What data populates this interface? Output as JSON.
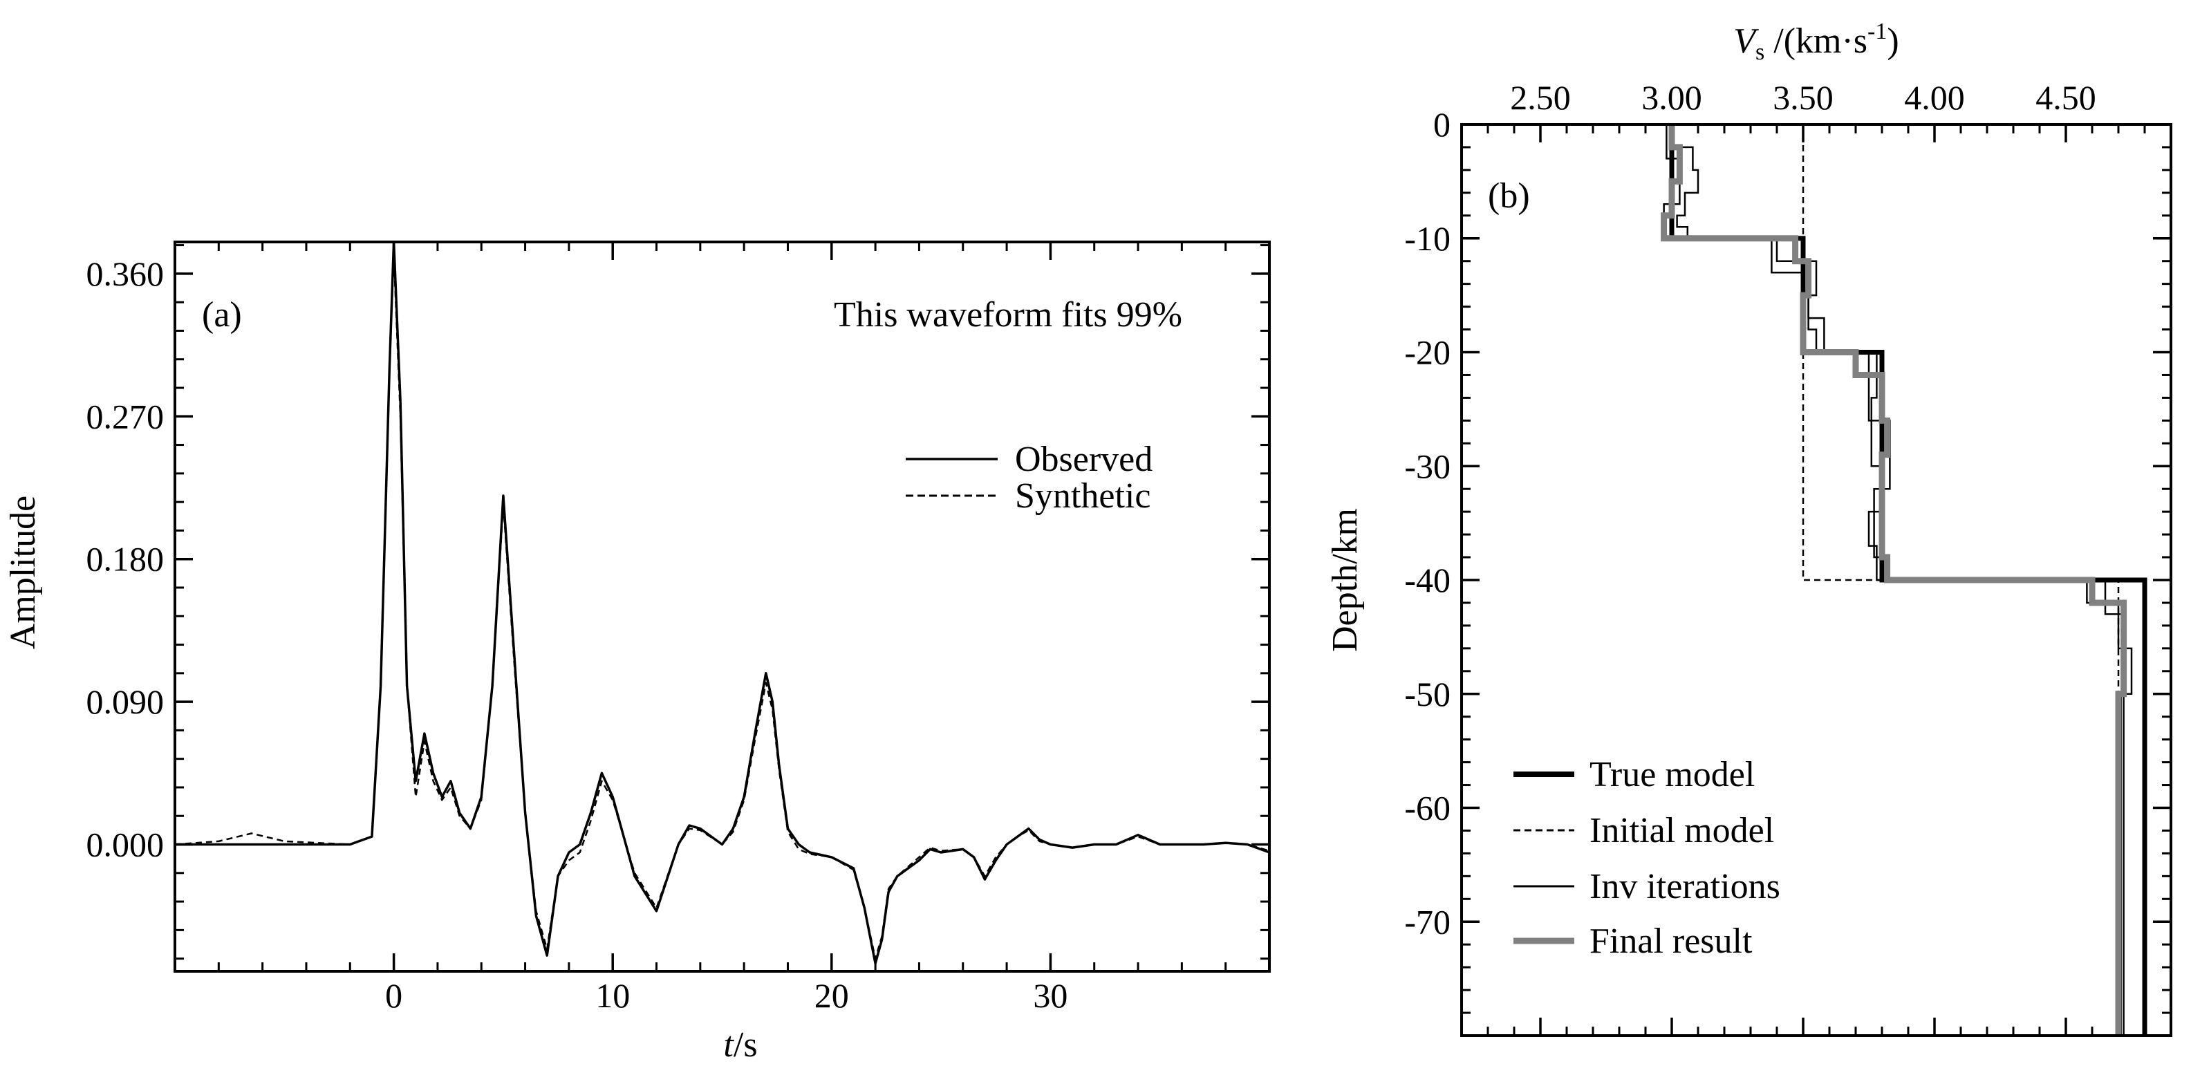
{
  "chart_data": [
    {
      "panel": "a",
      "type": "line",
      "panel_label": "(a)",
      "annotation": "This waveform fits 99%",
      "xlabel_italic": "t",
      "xlabel_rest": "/s",
      "ylabel": "Amplitude",
      "xlim": [
        -10,
        40
      ],
      "ylim": [
        -0.08,
        0.38
      ],
      "x_ticks": [
        0,
        10,
        20,
        30
      ],
      "x_tick_labels": [
        "0",
        "10",
        "20",
        "30"
      ],
      "y_ticks": [
        0.0,
        0.09,
        0.18,
        0.27,
        0.36
      ],
      "y_tick_labels": [
        "0.000",
        "0.090",
        "0.180",
        "0.270",
        "0.360"
      ],
      "legend": [
        "Observed",
        "Synthetic"
      ],
      "series": [
        {
          "name": "Observed",
          "style": "solid",
          "x": [
            -10,
            -2,
            -1,
            -0.6,
            -0.2,
            0,
            0.3,
            0.6,
            1.0,
            1.4,
            1.8,
            2.2,
            2.6,
            3.0,
            3.5,
            4.0,
            4.5,
            5.0,
            5.5,
            6.0,
            6.5,
            7.0,
            7.5,
            8.0,
            8.5,
            9.0,
            9.5,
            10.0,
            11.0,
            12.0,
            13.0,
            13.5,
            14.0,
            15.0,
            15.5,
            16.0,
            16.5,
            17.0,
            17.3,
            17.6,
            18.0,
            18.5,
            19.0,
            20.0,
            21.0,
            21.5,
            22.0,
            22.3,
            22.6,
            23.0,
            23.5,
            24.0,
            24.5,
            25.0,
            26.0,
            26.5,
            27.0,
            27.5,
            28.0,
            28.5,
            29.0,
            29.5,
            30.0,
            31.0,
            32.0,
            33.0,
            34.0,
            35.0,
            36.0,
            37.0,
            38.0,
            39.0,
            40.0
          ],
          "y": [
            0.0,
            0.0,
            0.005,
            0.1,
            0.3,
            0.38,
            0.28,
            0.1,
            0.04,
            0.07,
            0.045,
            0.03,
            0.04,
            0.02,
            0.01,
            0.03,
            0.1,
            0.22,
            0.12,
            0.02,
            -0.045,
            -0.07,
            -0.02,
            -0.005,
            0.0,
            0.02,
            0.045,
            0.03,
            -0.02,
            -0.042,
            0.0,
            0.012,
            0.01,
            0.0,
            0.01,
            0.03,
            0.07,
            0.108,
            0.09,
            0.05,
            0.01,
            0.0,
            -0.005,
            -0.008,
            -0.015,
            -0.04,
            -0.075,
            -0.06,
            -0.03,
            -0.02,
            -0.015,
            -0.01,
            -0.003,
            -0.005,
            -0.003,
            -0.008,
            -0.022,
            -0.01,
            0.0,
            0.005,
            0.01,
            0.003,
            0.0,
            -0.002,
            0.0,
            0.0,
            0.006,
            0.0,
            0.0,
            0.0,
            0.001,
            0.0,
            -0.005
          ]
        },
        {
          "name": "Synthetic",
          "style": "dashed",
          "x": [
            -10,
            -8,
            -6.5,
            -5,
            -2,
            -1,
            -0.6,
            -0.2,
            0,
            0.3,
            0.6,
            1.0,
            1.4,
            1.8,
            2.2,
            2.6,
            3.0,
            3.5,
            4.0,
            4.5,
            5.0,
            5.5,
            6.0,
            6.5,
            7.0,
            7.5,
            8.0,
            8.5,
            9.0,
            9.5,
            10.0,
            11.0,
            12.0,
            13.0,
            13.5,
            14.0,
            15.0,
            15.5,
            16.0,
            16.5,
            17.0,
            17.3,
            17.6,
            18.0,
            18.5,
            19.0,
            20.0,
            21.0,
            21.5,
            22.0,
            22.3,
            22.6,
            23.0,
            23.5,
            24.0,
            24.5,
            25.0,
            26.0,
            26.5,
            27.0,
            27.5,
            28.0,
            28.5,
            29.0,
            29.5,
            30.0,
            31.0,
            32.0,
            33.0,
            34.0,
            35.0,
            36.0,
            37.0,
            38.0,
            39.0,
            40.0
          ],
          "y": [
            0.0,
            0.002,
            0.007,
            0.002,
            0.0,
            0.005,
            0.1,
            0.3,
            0.372,
            0.27,
            0.1,
            0.03,
            0.065,
            0.04,
            0.028,
            0.036,
            0.018,
            0.01,
            0.028,
            0.1,
            0.215,
            0.115,
            0.02,
            -0.042,
            -0.066,
            -0.02,
            -0.01,
            -0.005,
            0.015,
            0.04,
            0.028,
            -0.018,
            -0.04,
            0.0,
            0.01,
            0.009,
            0.0,
            0.008,
            0.028,
            0.066,
            0.102,
            0.085,
            0.047,
            0.008,
            -0.003,
            -0.006,
            -0.008,
            -0.016,
            -0.04,
            -0.072,
            -0.058,
            -0.028,
            -0.02,
            -0.014,
            -0.008,
            -0.002,
            -0.004,
            -0.003,
            -0.008,
            -0.02,
            -0.008,
            0.0,
            0.005,
            0.009,
            0.002,
            0.0,
            -0.002,
            0.0,
            0.0,
            0.005,
            0.0,
            0.0,
            0.0,
            0.001,
            0.0,
            -0.004
          ]
        }
      ]
    },
    {
      "panel": "b",
      "type": "line",
      "panel_label": "(b)",
      "xlabel_italic": "V",
      "xlabel_sub": "s",
      "xlabel_rest": " /(km·s",
      "xlabel_sup": "-1",
      "xlabel_close": ")",
      "ylabel": "Depth/km",
      "xlim": [
        2.2,
        4.9
      ],
      "ylim": [
        -80,
        0
      ],
      "x_ticks": [
        2.5,
        3.0,
        3.5,
        4.0,
        4.5
      ],
      "x_tick_labels": [
        "2.50",
        "3.00",
        "3.50",
        "4.00",
        "4.50"
      ],
      "y_ticks": [
        0,
        -10,
        -20,
        -30,
        -40,
        -50,
        -60,
        -70
      ],
      "y_tick_labels": [
        "0",
        "-10",
        "-20",
        "-30",
        "-40",
        "-50",
        "-60",
        "-70"
      ],
      "legend": [
        "True model",
        "Initial model",
        "Inv iterations",
        "Final result"
      ],
      "series": [
        {
          "name": "True model",
          "style": "thick-black",
          "v": [
            3.0,
            3.0,
            3.5,
            3.5,
            3.8,
            3.8,
            4.8,
            4.8
          ],
          "depth": [
            0,
            -10,
            -10,
            -20,
            -20,
            -40,
            -40,
            -80
          ]
        },
        {
          "name": "Initial model",
          "style": "dashed",
          "v": [
            3.5,
            3.5,
            4.7,
            4.7
          ],
          "depth": [
            0,
            -40,
            -40,
            -80
          ]
        },
        {
          "name": "Inv iterations",
          "style": "thin-black",
          "v": [
            3.0,
            3.0,
            3.08,
            3.08,
            3.1,
            3.1,
            3.05,
            3.05,
            3.02,
            3.02,
            3.06,
            3.06,
            3.4,
            3.4,
            3.55,
            3.55,
            3.52,
            3.52,
            3.55,
            3.55,
            3.78,
            3.78,
            3.76,
            3.76,
            3.8,
            3.8,
            3.75,
            3.75,
            3.78,
            3.78,
            4.58,
            4.58,
            4.7,
            4.7,
            4.75,
            4.75,
            4.71,
            4.71
          ],
          "depth": [
            0,
            -2,
            -2,
            -4,
            -4,
            -6,
            -6,
            -8,
            -8,
            -9,
            -9,
            -10,
            -10,
            -12,
            -12,
            -15,
            -15,
            -18,
            -18,
            -20,
            -20,
            -24,
            -24,
            -30,
            -30,
            -34,
            -34,
            -37,
            -37,
            -40,
            -40,
            -42,
            -42,
            -46,
            -46,
            -50,
            -50,
            -80
          ]
        },
        {
          "name": "Inv iterations",
          "style": "thin-black",
          "v": [
            2.98,
            2.98,
            3.03,
            3.03,
            2.97,
            2.97,
            3.38,
            3.38,
            3.52,
            3.52,
            3.58,
            3.58,
            3.75,
            3.75,
            3.83,
            3.83,
            3.77,
            3.77,
            3.8,
            3.8,
            4.65,
            4.65,
            4.72,
            4.72,
            4.72
          ],
          "depth": [
            0,
            -3,
            -3,
            -7,
            -7,
            -10,
            -10,
            -13,
            -13,
            -17,
            -17,
            -20,
            -20,
            -26,
            -26,
            -32,
            -32,
            -38,
            -38,
            -40,
            -40,
            -43,
            -43,
            -48,
            -80
          ]
        },
        {
          "name": "Final result",
          "style": "thick-gray",
          "v": [
            3.0,
            3.0,
            3.03,
            3.03,
            3.0,
            3.0,
            2.97,
            2.97,
            3.47,
            3.47,
            3.52,
            3.52,
            3.5,
            3.5,
            3.7,
            3.7,
            3.8,
            3.8,
            3.82,
            3.82,
            3.8,
            3.8,
            3.82,
            3.82,
            4.6,
            4.6,
            4.72,
            4.72,
            4.7,
            4.7
          ],
          "depth": [
            0,
            -2,
            -2,
            -5,
            -5,
            -8,
            -8,
            -10,
            -10,
            -12,
            -12,
            -15,
            -15,
            -20,
            -20,
            -22,
            -22,
            -26,
            -26,
            -29,
            -29,
            -38,
            -38,
            -40,
            -40,
            -42,
            -42,
            -50,
            -50,
            -80
          ]
        }
      ]
    }
  ]
}
